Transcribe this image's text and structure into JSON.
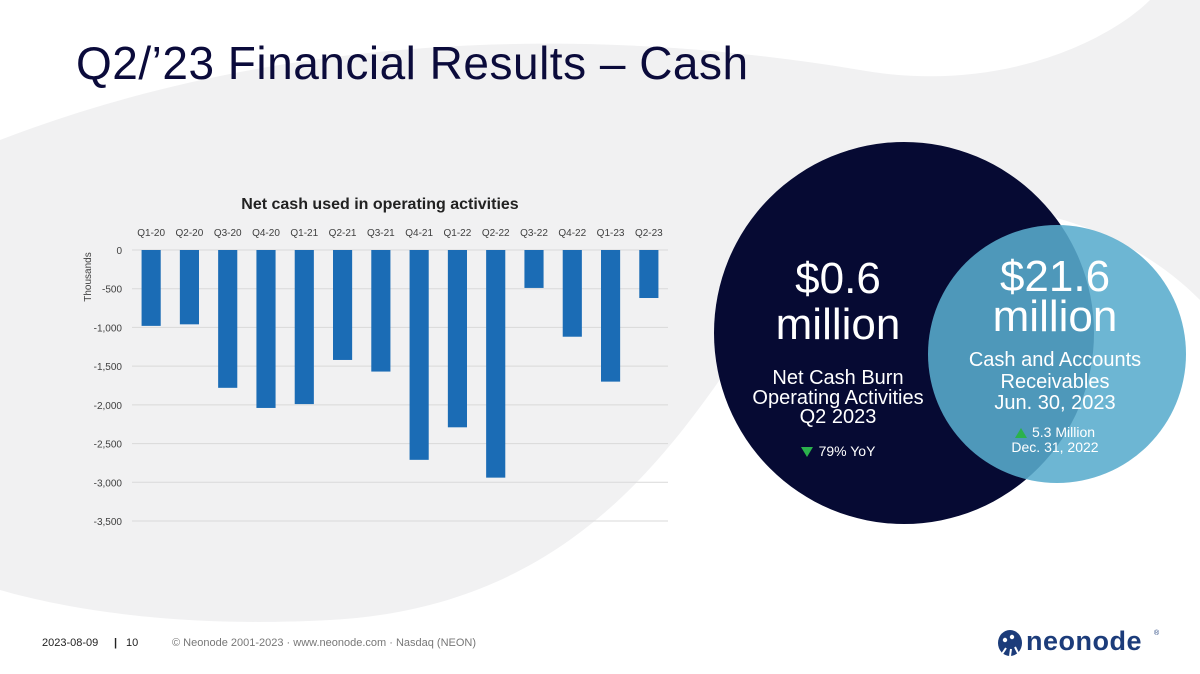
{
  "slide": {
    "title": "Q2/’23 Financial Results – Cash"
  },
  "chart_data": {
    "type": "bar",
    "title": "Net cash used in operating activities",
    "ylabel": "Thousands",
    "xlabel": "",
    "categories": [
      "Q1-20",
      "Q2-20",
      "Q3-20",
      "Q4-20",
      "Q1-21",
      "Q2-21",
      "Q3-21",
      "Q4-21",
      "Q1-22",
      "Q2-22",
      "Q3-22",
      "Q4-22",
      "Q1-23",
      "Q2-23"
    ],
    "values": [
      -980,
      -960,
      -1780,
      -2040,
      -1990,
      -1420,
      -1570,
      -2710,
      -2290,
      -2940,
      -490,
      -1120,
      -1700,
      -620
    ],
    "ylim": [
      -3500,
      0
    ],
    "yticks": [
      0,
      -500,
      -1000,
      -1500,
      -2000,
      -2500,
      -3000,
      -3500
    ],
    "ytick_labels": [
      "0",
      "-500",
      "-1,000",
      "-1,500",
      "-2,000",
      "-2,500",
      "-3,000",
      "-3,500"
    ],
    "category_axis_position": "top",
    "grid": true,
    "bar_color": "#1b6cb5"
  },
  "kpi_dark": {
    "value": "$0.6",
    "unit": "million",
    "label_line1": "Net Cash Burn",
    "label_line2": "Operating Activities",
    "label_line3": "Q2 2023",
    "delta": "79% YoY",
    "delta_direction": "down",
    "color": "#060a33"
  },
  "kpi_light": {
    "value": "$21.6",
    "unit": "million",
    "label_line1": "Cash and Accounts",
    "label_line2": "Receivables",
    "label_line3": "Jun. 30, 2023",
    "delta": "5.3 Million",
    "delta_note": "Dec. 31, 2022",
    "delta_direction": "up",
    "color": "#59accd"
  },
  "footer": {
    "date": "2023-08-09",
    "separator": "|",
    "page": "10",
    "copyright": "© Neonode 2001-2023 · www.neonode.com · Nasdaq (NEON)"
  },
  "logo": {
    "text": "neonode",
    "registered": "®"
  }
}
